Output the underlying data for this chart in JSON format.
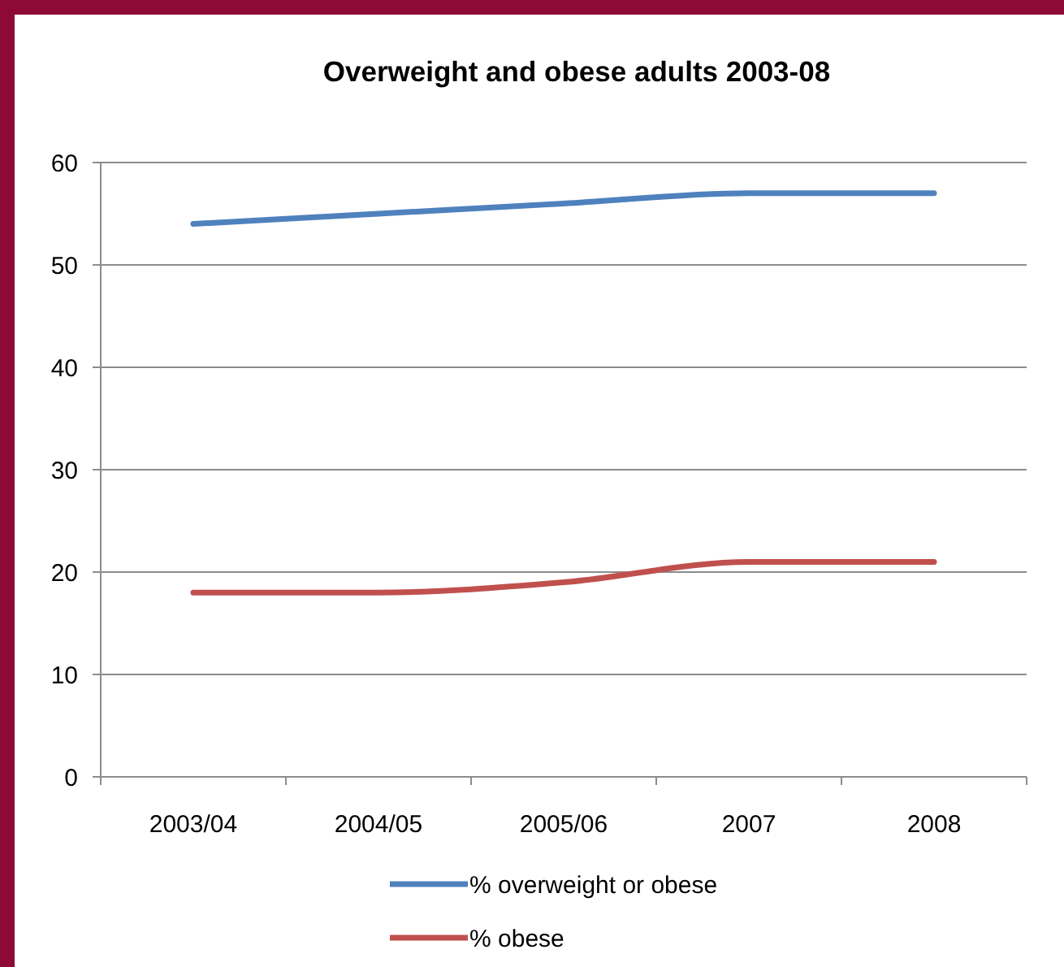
{
  "chart_data": {
    "type": "line",
    "title": "Overweight and obese adults 2003-08",
    "categories": [
      "2003/04",
      "2004/05",
      "2005/06",
      "2007",
      "2008"
    ],
    "series": [
      {
        "name": "% overweight or obese",
        "color": "#4f81bd",
        "values": [
          54,
          55,
          56,
          57,
          57
        ]
      },
      {
        "name": "% obese",
        "color": "#c0504d",
        "values": [
          18,
          18,
          19,
          21,
          21
        ]
      }
    ],
    "ylim": [
      0,
      60
    ],
    "yticks": [
      0,
      10,
      20,
      30,
      40,
      50,
      60
    ],
    "grid": "y",
    "legend": "bottom",
    "marker": "none",
    "line_style": "solid"
  }
}
